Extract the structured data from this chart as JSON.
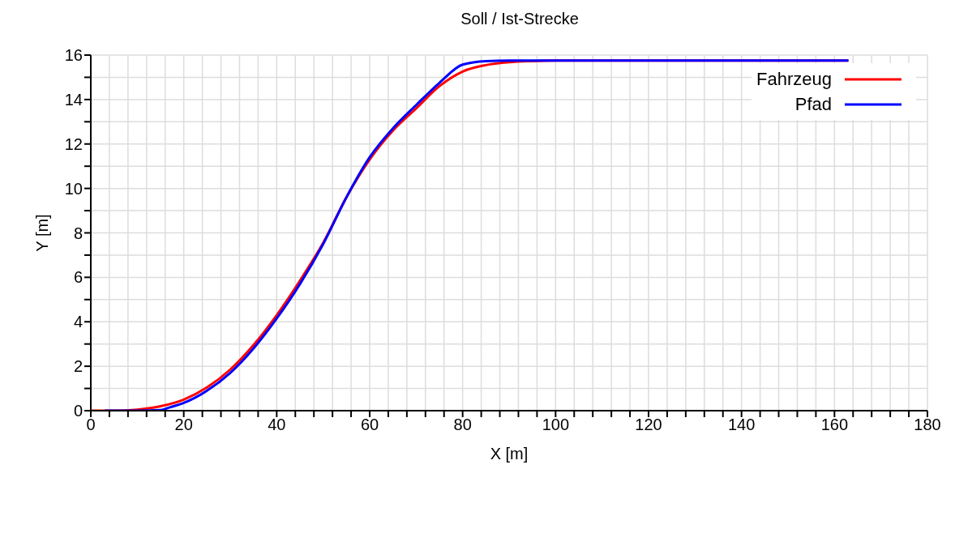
{
  "chart_data": {
    "type": "line",
    "title": "Soll / Ist-Strecke",
    "xlabel": "X [m]",
    "ylabel": "Y [m]",
    "xlim": [
      0,
      180
    ],
    "ylim": [
      0,
      16
    ],
    "xticks": [
      0,
      {
        "value": 4,
        "label": null
      },
      {
        "value": 8,
        "label": null
      },
      {
        "value": 12,
        "label": null
      },
      {
        "value": 16,
        "label": null
      },
      20,
      {
        "value": 24,
        "label": null
      },
      {
        "value": 28,
        "label": null
      },
      {
        "value": 32,
        "label": null
      },
      {
        "value": 36,
        "label": null
      },
      40,
      {
        "value": 44,
        "label": null
      },
      {
        "value": 48,
        "label": null
      },
      {
        "value": 52,
        "label": null
      },
      {
        "value": 56,
        "label": null
      },
      60,
      {
        "value": 64,
        "label": null
      },
      {
        "value": 68,
        "label": null
      },
      {
        "value": 72,
        "label": null
      },
      {
        "value": 76,
        "label": null
      },
      80,
      {
        "value": 84,
        "label": null
      },
      {
        "value": 88,
        "label": null
      },
      {
        "value": 92,
        "label": null
      },
      {
        "value": 96,
        "label": null
      },
      100,
      {
        "value": 104,
        "label": null
      },
      {
        "value": 108,
        "label": null
      },
      {
        "value": 112,
        "label": null
      },
      {
        "value": 116,
        "label": null
      },
      120,
      {
        "value": 124,
        "label": null
      },
      {
        "value": 128,
        "label": null
      },
      {
        "value": 132,
        "label": null
      },
      {
        "value": 136,
        "label": null
      },
      140,
      {
        "value": 144,
        "label": null
      },
      {
        "value": 148,
        "label": null
      },
      {
        "value": 152,
        "label": null
      },
      {
        "value": 156,
        "label": null
      },
      160,
      {
        "value": 164,
        "label": null
      },
      {
        "value": 168,
        "label": null
      },
      {
        "value": 172,
        "label": null
      },
      {
        "value": 176,
        "label": null
      },
      180
    ],
    "yticks": [
      0,
      {
        "value": 1,
        "label": null
      },
      2,
      {
        "value": 3,
        "label": null
      },
      4,
      {
        "value": 5,
        "label": null
      },
      6,
      {
        "value": 7,
        "label": null
      },
      8,
      {
        "value": 9,
        "label": null
      },
      10,
      {
        "value": 11,
        "label": null
      },
      12,
      {
        "value": 13,
        "label": null
      },
      14,
      {
        "value": 15,
        "label": null
      },
      16
    ],
    "grid": true,
    "legend": "top right",
    "marker": "none",
    "line_style": "solid",
    "series": [
      {
        "name": "Fahrzeug",
        "color": "#ff0000",
        "x": [
          0,
          5,
          10,
          15,
          20,
          25,
          30,
          35,
          40,
          45,
          50,
          55,
          60,
          65,
          70,
          75,
          80,
          85,
          90,
          95,
          100,
          163
        ],
        "values": [
          0,
          0,
          0.05,
          0.2,
          0.5,
          1.05,
          1.85,
          2.95,
          4.3,
          5.85,
          7.55,
          9.6,
          11.3,
          12.6,
          13.6,
          14.6,
          15.26,
          15.55,
          15.68,
          15.73,
          15.75,
          15.75
        ]
      },
      {
        "name": "Pfad",
        "color": "#0000ff",
        "x": [
          3,
          10,
          15,
          17,
          20,
          25,
          30,
          35,
          40,
          45,
          50,
          55,
          60,
          65,
          70,
          75,
          80,
          85,
          90,
          95,
          163
        ],
        "values": [
          0,
          0,
          0.03,
          0.15,
          0.35,
          0.9,
          1.7,
          2.8,
          4.15,
          5.7,
          7.5,
          9.6,
          11.4,
          12.7,
          13.75,
          14.75,
          15.57,
          15.73,
          15.75,
          15.75,
          15.75
        ]
      }
    ]
  }
}
